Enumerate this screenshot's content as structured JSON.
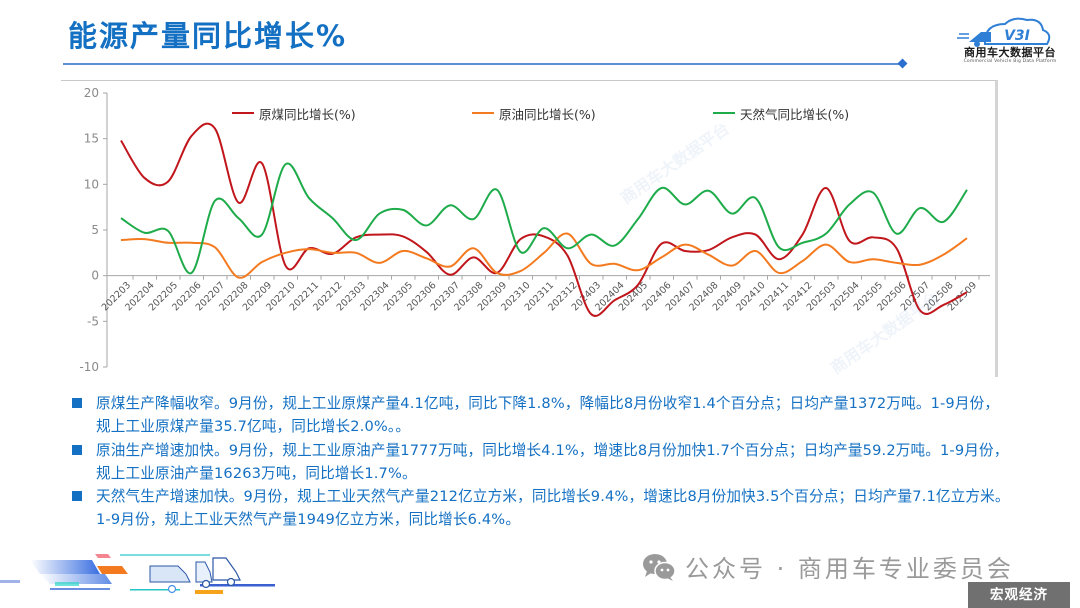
{
  "header": {
    "title": "能源产量同比增长%",
    "logo": {
      "mark": "V3I",
      "name": "商用车大数据平台",
      "subtitle": "Commercial Vehicle Big Data Platform"
    }
  },
  "chart_data": {
    "type": "line",
    "title": "",
    "xlabel": "",
    "ylabel": "",
    "ylim": [
      -10,
      20
    ],
    "yticks": [
      20,
      15,
      10,
      5,
      0,
      -5,
      -10
    ],
    "grid": false,
    "legend_position": "top",
    "smooth": true,
    "categories": [
      "202203",
      "202204",
      "202205",
      "202206",
      "202207",
      "202208",
      "202209",
      "202210",
      "202211",
      "202212",
      "202303",
      "202304",
      "202305",
      "202306",
      "202307",
      "202308",
      "202309",
      "202310",
      "202311",
      "202312",
      "202403",
      "202404",
      "202405",
      "202406",
      "202407",
      "202408",
      "202409",
      "202410",
      "202411",
      "202412",
      "202503",
      "202504",
      "202505",
      "202506",
      "202507",
      "202508",
      "202509"
    ],
    "series": [
      {
        "name": "原煤同比增长(%)",
        "color": "#c0161c",
        "values": [
          14.8,
          10.7,
          10.3,
          15.3,
          16.1,
          8.0,
          12.3,
          1.1,
          3.0,
          2.4,
          4.2,
          4.5,
          4.3,
          2.6,
          0.1,
          2.0,
          0.3,
          4.0,
          4.3,
          2.2,
          -4.2,
          -2.7,
          -1.0,
          3.5,
          2.7,
          2.8,
          4.2,
          4.5,
          1.8,
          4.5,
          9.6,
          3.8,
          4.2,
          3.0,
          -3.8,
          -3.2,
          -1.8
        ]
      },
      {
        "name": "原油同比增长(%)",
        "color": "#f47a1f",
        "values": [
          3.9,
          4.0,
          3.6,
          3.6,
          3.1,
          -0.2,
          1.5,
          2.5,
          2.9,
          2.5,
          2.5,
          1.4,
          2.7,
          1.9,
          1.0,
          3.0,
          0.3,
          0.5,
          2.5,
          4.6,
          1.3,
          1.3,
          0.6,
          2.0,
          3.4,
          2.3,
          1.1,
          2.7,
          0.3,
          1.6,
          3.4,
          1.5,
          1.8,
          1.4,
          1.2,
          2.3,
          4.1
        ]
      },
      {
        "name": "天然气同比增长(%)",
        "color": "#1eab4a",
        "values": [
          6.3,
          4.7,
          4.9,
          0.3,
          8.2,
          6.3,
          4.5,
          12.2,
          8.5,
          6.3,
          3.9,
          6.8,
          7.2,
          5.5,
          7.7,
          6.2,
          9.4,
          2.6,
          5.2,
          3.0,
          4.5,
          3.3,
          6.2,
          9.6,
          7.8,
          9.3,
          6.8,
          8.5,
          3.1,
          3.6,
          4.6,
          7.8,
          9.1,
          4.6,
          7.4,
          5.9,
          9.4
        ]
      }
    ]
  },
  "chart_axis_labels": {
    "y": [
      "20",
      "15",
      "10",
      "5",
      "0",
      "-5",
      "-10"
    ]
  },
  "bullets": [
    {
      "text": "原煤生产降幅收窄。9月份，规上工业原煤产量4.1亿吨，同比下降1.8%，降幅比8月份收窄1.4个百分点；日均产量1372万吨。1-9月份，规上工业原煤产量35.7亿吨，同比增长2.0%。。"
    },
    {
      "text": "原油生产增速加快。9月份，规上工业原油产量1777万吨，同比增长4.1%，增速比8月份加快1.7个百分点；日均产量59.2万吨。1-9月份，规上工业原油产量16263万吨，同比增长1.7%。"
    },
    {
      "text": "天然气生产增速加快。9月份，规上工业天然气产量212亿立方米，同比增长9.4%，增速比8月份加快3.5个百分点；日均产量7.1亿立方米。1-9月份，规上工业天然气产量1949亿立方米，同比增长6.4%。"
    }
  ],
  "footer": {
    "wechat_label": "公众号 · 商用车专业委员会",
    "tag": "宏观经济"
  },
  "watermark": "商用车大数据平台",
  "colors": {
    "title_blue": "#1470c2",
    "coal": "#c0161c",
    "oil": "#f47a1f",
    "gas": "#1eab4a",
    "tag_bg": "#707070"
  }
}
